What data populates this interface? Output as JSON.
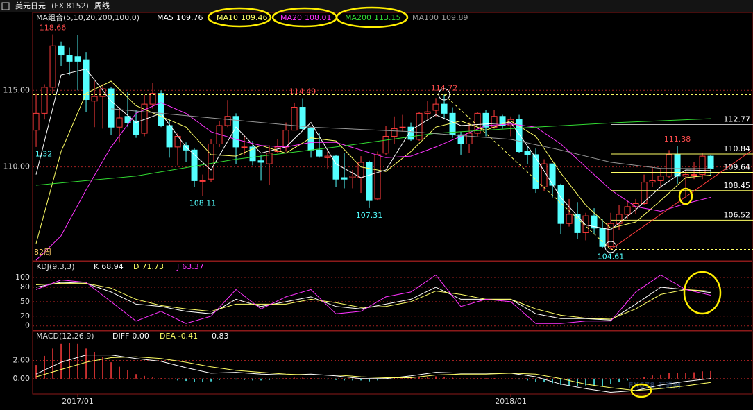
{
  "header": {
    "symbol": "美元日元",
    "code": "(FX 8152)",
    "period": "周线"
  },
  "watermark": "FX678 汇通网",
  "chart_data": [
    {
      "type": "candlestick",
      "indicator": "MA组合(5,10,20,200,100,0)",
      "period_label": "82周",
      "xlim": [
        -0.42,
        86.08
      ],
      "ylim": [
        103.86,
        120.09
      ],
      "grid": true,
      "yticks": [
        {
          "value": 115,
          "label": "115.00"
        },
        {
          "value": 110,
          "label": "110.00"
        }
      ],
      "up_color": "#ff3c3c",
      "down_color": "#54ffff",
      "open": [
        112.4,
        113.5,
        115.2,
        117.9,
        117.3,
        117.2,
        117.0,
        114.3,
        114.6,
        115.1,
        112.6,
        113.3,
        113.0,
        112.2,
        114.1,
        114.8,
        112.7,
        111.3,
        111.4,
        111.1,
        109.1,
        109.2,
        111.5,
        112.7,
        113.3,
        111.3,
        111.3,
        110.4,
        110.2,
        111.0,
        111.3,
        112.4,
        113.9,
        112.5,
        111.1,
        110.6,
        110.7,
        109.3,
        109.3,
        109.3,
        110.3,
        107.9,
        110.9,
        112.0,
        112.6,
        112.6,
        111.8,
        113.5,
        113.7,
        114.1,
        113.5,
        112.1,
        111.5,
        112.2,
        113.5,
        112.6,
        113.3,
        112.7,
        113.1,
        111.0,
        110.8,
        108.7,
        110.2,
        108.8,
        106.3,
        106.9,
        105.7,
        106.8,
        106.0,
        104.8,
        106.3,
        106.9,
        107.4,
        107.6,
        109.0,
        109.1,
        109.4,
        110.8,
        109.4,
        109.5,
        109.5,
        110.7
      ],
      "high": [
        114.8,
        115.4,
        118.66,
        118.2,
        117.8,
        118.6,
        117.5,
        115.6,
        115.4,
        115.2,
        113.9,
        114.9,
        113.7,
        114.7,
        115.5,
        115.0,
        113.1,
        112.2,
        111.6,
        111.2,
        109.5,
        111.8,
        113.0,
        114.37,
        113.5,
        112.1,
        111.7,
        110.8,
        111.4,
        111.8,
        112.9,
        114.2,
        114.49,
        112.6,
        112.2,
        111.0,
        110.8,
        110.9,
        109.8,
        110.7,
        110.4,
        111.0,
        112.7,
        113.3,
        113.4,
        112.9,
        113.6,
        114.3,
        114.5,
        114.72,
        113.9,
        112.3,
        112.9,
        113.6,
        113.7,
        113.7,
        113.4,
        113.3,
        113.4,
        111.3,
        111.2,
        110.5,
        110.2,
        108.9,
        107.9,
        107.7,
        107.0,
        107.3,
        106.6,
        107.0,
        107.5,
        107.8,
        107.9,
        109.5,
        110.0,
        109.9,
        111.1,
        111.38,
        109.7,
        110.3,
        110.9,
        110.8
      ],
      "low": [
        111.3,
        113.1,
        114.8,
        116.6,
        116.0,
        115.0,
        113.6,
        112.6,
        112.5,
        112.1,
        111.6,
        112.6,
        111.9,
        112.0,
        113.8,
        112.6,
        110.6,
        110.1,
        110.3,
        108.7,
        108.11,
        109.0,
        111.3,
        112.6,
        110.2,
        110.8,
        110.1,
        109.1,
        108.8,
        110.9,
        111.0,
        112.4,
        112.4,
        110.6,
        110.6,
        109.9,
        108.7,
        108.6,
        108.6,
        108.3,
        107.31,
        107.8,
        110.8,
        111.5,
        112.3,
        111.7,
        111.7,
        113.1,
        113.3,
        113.1,
        111.9,
        110.8,
        110.9,
        112.0,
        112.0,
        112.5,
        112.5,
        112.0,
        110.9,
        110.2,
        108.3,
        108.4,
        108.0,
        105.6,
        106.1,
        105.3,
        105.2,
        105.6,
        104.7,
        104.61,
        105.9,
        106.6,
        106.9,
        107.5,
        108.7,
        108.7,
        109.3,
        108.9,
        108.1,
        109.2,
        109.2,
        109.4
      ],
      "close": [
        113.5,
        115.2,
        117.9,
        117.3,
        116.9,
        116.9,
        114.4,
        114.6,
        115.1,
        112.6,
        113.2,
        112.9,
        112.1,
        114.1,
        114.8,
        112.7,
        111.3,
        112.0,
        111.1,
        109.1,
        109.1,
        111.5,
        112.7,
        113.3,
        111.3,
        111.3,
        110.4,
        110.3,
        110.9,
        111.3,
        112.4,
        113.9,
        112.5,
        111.1,
        110.7,
        110.7,
        109.2,
        109.2,
        109.4,
        110.3,
        107.8,
        110.8,
        112.0,
        112.5,
        112.6,
        111.8,
        113.5,
        113.6,
        114.1,
        113.5,
        112.1,
        111.5,
        112.2,
        113.5,
        112.6,
        113.3,
        112.7,
        113.1,
        111.0,
        110.8,
        108.6,
        110.2,
        108.8,
        106.3,
        106.9,
        105.7,
        106.8,
        106.0,
        104.8,
        106.3,
        106.9,
        107.4,
        107.6,
        109.0,
        109.1,
        109.4,
        110.8,
        109.4,
        109.5,
        109.5,
        110.7,
        109.9
      ],
      "series": [
        {
          "name": "MA5",
          "color": "#ffffff",
          "value": 109.76,
          "x": [
            0,
            3,
            6,
            9,
            12,
            15,
            18,
            21,
            24,
            27,
            30,
            33,
            36,
            39,
            42,
            45,
            48,
            51,
            54,
            57,
            60,
            63,
            66,
            69,
            72,
            75,
            78,
            81
          ],
          "values": [
            109.5,
            116.0,
            116.4,
            114.3,
            112.9,
            113.5,
            111.3,
            109.8,
            112.6,
            110.9,
            111.3,
            112.9,
            110.2,
            109.3,
            109.8,
            112.4,
            113.4,
            112.7,
            112.8,
            112.9,
            110.6,
            108.0,
            106.2,
            105.9,
            107.2,
            108.7,
            109.8,
            109.76
          ]
        },
        {
          "name": "MA10",
          "color": "#ffff66",
          "value": 109.46,
          "x": [
            0,
            3,
            6,
            9,
            12,
            15,
            18,
            21,
            24,
            27,
            30,
            33,
            36,
            39,
            42,
            45,
            48,
            51,
            54,
            57,
            60,
            63,
            66,
            69,
            72,
            75,
            78,
            81
          ],
          "values": [
            105.0,
            111.0,
            114.8,
            115.6,
            114.0,
            113.3,
            112.6,
            110.8,
            110.7,
            111.4,
            110.9,
            111.9,
            111.7,
            110.0,
            109.7,
            111.0,
            112.6,
            113.0,
            112.4,
            113.0,
            112.0,
            109.6,
            107.5,
            106.0,
            106.4,
            107.8,
            109.3,
            109.46
          ]
        },
        {
          "name": "MA20",
          "color": "#ff33ff",
          "value": 108.01,
          "x": [
            0,
            3,
            6,
            9,
            12,
            15,
            18,
            21,
            24,
            27,
            30,
            33,
            36,
            39,
            42,
            45,
            48,
            51,
            54,
            57,
            60,
            63,
            66,
            69,
            72,
            75,
            78,
            81
          ],
          "values": [
            103.9,
            105.5,
            108.5,
            111.3,
            113.5,
            114.2,
            113.5,
            112.3,
            111.8,
            111.4,
            111.3,
            111.6,
            111.6,
            111.1,
            110.6,
            110.7,
            111.3,
            112.0,
            112.7,
            112.8,
            112.6,
            111.5,
            110.0,
            108.5,
            107.4,
            107.1,
            107.6,
            108.01
          ]
        },
        {
          "name": "MA200",
          "color": "#33dd33",
          "value": 113.15,
          "x": [
            0,
            12,
            24,
            36,
            48,
            60,
            70,
            81
          ],
          "values": [
            108.8,
            109.4,
            110.5,
            111.3,
            112.2,
            112.6,
            112.9,
            113.15
          ]
        },
        {
          "name": "MA100",
          "color": "#999999",
          "value": 109.89,
          "x": [
            9,
            21,
            33,
            45,
            57,
            63,
            69,
            75,
            81
          ],
          "values": [
            113.8,
            113.2,
            112.6,
            112.3,
            111.8,
            111.1,
            110.3,
            109.9,
            109.89
          ]
        }
      ],
      "levels": [
        {
          "value": 112.77,
          "color": "#bbbbbb"
        },
        {
          "value": 110.84,
          "color": "#ffff66"
        },
        {
          "value": 109.64,
          "color": "#ffff66"
        },
        {
          "value": 108.45,
          "color": "#ffff66"
        },
        {
          "value": 106.52,
          "color": "#ffff66"
        }
      ],
      "dashed_levels": [
        114.72,
        104.61
      ],
      "trendlines": [
        {
          "x": [
            49,
            69
          ],
          "y": [
            114.72,
            104.61
          ],
          "color": "#ffff66",
          "dashed": true
        },
        {
          "x": [
            69,
            86
          ],
          "y": [
            104.61,
            111.1
          ],
          "color": "#ff3c3c",
          "dashed": false
        }
      ],
      "annotations": [
        {
          "x": 2,
          "y": 118.66,
          "text": "118.66",
          "color": "#ff4d4d",
          "pos": "above"
        },
        {
          "x": 32,
          "y": 114.49,
          "text": "114.49",
          "color": "#ff4d4d",
          "pos": "above"
        },
        {
          "x": 49,
          "y": 114.72,
          "text": "114.72",
          "color": "#ff4d4d",
          "pos": "above"
        },
        {
          "x": 77,
          "y": 111.38,
          "text": "111.38",
          "color": "#ff4d4d",
          "pos": "above"
        },
        {
          "x": 20,
          "y": 108.11,
          "text": "108.11",
          "color": "#54ffff",
          "pos": "below"
        },
        {
          "x": 40,
          "y": 107.31,
          "text": "107.31",
          "color": "#54ffff",
          "pos": "below"
        },
        {
          "x": 69,
          "y": 104.61,
          "text": "104.61",
          "color": "#54ffff",
          "pos": "below"
        },
        {
          "x": 0,
          "y": 111.32,
          "text": "1.32",
          "color": "#54ffff",
          "pos": "below"
        }
      ]
    },
    {
      "type": "line",
      "indicator": "KDJ(9,3,3)",
      "xlim": [
        -0.42,
        86.08
      ],
      "ylim": [
        -9,
        133
      ],
      "grid": true,
      "yticks": [
        100,
        80,
        50,
        20,
        0
      ],
      "x": [
        0,
        3,
        6,
        9,
        12,
        15,
        18,
        21,
        24,
        27,
        30,
        33,
        36,
        39,
        42,
        45,
        48,
        51,
        54,
        57,
        60,
        63,
        66,
        69,
        72,
        75,
        78,
        81
      ],
      "series": [
        {
          "name": "K",
          "color": "#ffffff",
          "value": 68.94,
          "values": [
            80,
            90,
            88,
            70,
            45,
            40,
            30,
            25,
            55,
            40,
            50,
            60,
            40,
            35,
            45,
            55,
            80,
            55,
            55,
            55,
            25,
            15,
            15,
            12,
            45,
            80,
            75,
            68.94
          ]
        },
        {
          "name": "D",
          "color": "#ffff66",
          "value": 71.73,
          "values": [
            85,
            88,
            88,
            78,
            55,
            42,
            35,
            30,
            45,
            45,
            45,
            55,
            48,
            38,
            40,
            50,
            72,
            65,
            55,
            55,
            35,
            22,
            16,
            14,
            35,
            65,
            75,
            71.73
          ]
        },
        {
          "name": "J",
          "color": "#ff33ff",
          "value": 63.37,
          "values": [
            75,
            95,
            90,
            50,
            10,
            30,
            5,
            20,
            75,
            35,
            60,
            75,
            25,
            30,
            60,
            70,
            105,
            40,
            55,
            50,
            5,
            5,
            10,
            10,
            70,
            105,
            75,
            63.37
          ]
        }
      ]
    },
    {
      "type": "macd",
      "indicator": "MACD(12,26,9)",
      "xlim": [
        -0.42,
        86.08
      ],
      "ylim": [
        -1.69,
        5.23
      ],
      "grid": true,
      "yticks": [
        {
          "value": 2,
          "label": "2.00"
        },
        {
          "value": 0,
          "label": "0.00"
        }
      ],
      "xticks": [
        {
          "value": 5,
          "label": "2017/01"
        },
        {
          "value": 57,
          "label": "2018/01"
        }
      ],
      "x": [
        0,
        3,
        6,
        9,
        12,
        15,
        18,
        21,
        24,
        27,
        30,
        33,
        36,
        39,
        42,
        45,
        48,
        51,
        54,
        57,
        60,
        63,
        66,
        69,
        72,
        75,
        78,
        81
      ],
      "series": [
        {
          "name": "DIFF",
          "color": "#ffffff",
          "value": {
            "value": 0,
            "label": "0.00"
          },
          "values": [
            0.5,
            1.8,
            2.6,
            2.6,
            2.2,
            1.9,
            1.2,
            0.6,
            0.7,
            0.5,
            0.4,
            0.5,
            0.3,
            0.0,
            0.0,
            0.3,
            0.7,
            0.6,
            0.6,
            0.6,
            0.2,
            -0.6,
            -1.1,
            -1.5,
            -1.3,
            -0.7,
            -0.3,
            0.0
          ]
        },
        {
          "name": "DEA",
          "color": "#ffff66",
          "value": -0.41,
          "values": [
            0.2,
            1.0,
            1.8,
            2.3,
            2.4,
            2.2,
            1.8,
            1.3,
            0.9,
            0.7,
            0.5,
            0.4,
            0.4,
            0.2,
            0.1,
            0.1,
            0.4,
            0.5,
            0.5,
            0.6,
            0.5,
            0.0,
            -0.6,
            -1.0,
            -1.3,
            -1.1,
            -0.8,
            -0.41
          ]
        }
      ],
      "histogram": {
        "value": 0.83,
        "up_color": "#ff3c3c",
        "down_color": "#54ffff",
        "values": [
          1.5,
          2.5,
          3.3,
          3.8,
          3.9,
          3.8,
          3.3,
          2.9,
          2.4,
          1.8,
          1.3,
          0.9,
          0.5,
          0.3,
          0.2,
          0.05,
          -0.1,
          -0.2,
          -0.25,
          -0.35,
          -0.4,
          -0.3,
          -0.15,
          -0.05,
          -0.1,
          -0.15,
          -0.2,
          -0.2,
          -0.15,
          -0.05,
          0.05,
          0.1,
          0.1,
          0.05,
          -0.05,
          -0.1,
          -0.15,
          -0.2,
          -0.2,
          -0.2,
          -0.3,
          -0.2,
          -0.05,
          0.1,
          0.15,
          0.1,
          0.15,
          0.2,
          0.25,
          0.2,
          0.1,
          0.0,
          0.0,
          0.05,
          0.05,
          0.05,
          0.0,
          0.0,
          -0.1,
          -0.2,
          -0.35,
          -0.4,
          -0.5,
          -0.7,
          -0.75,
          -0.8,
          -0.75,
          -0.7,
          -0.8,
          -0.6,
          -0.4,
          -0.2,
          0.0,
          0.2,
          0.35,
          0.45,
          0.6,
          0.65,
          0.65,
          0.7,
          0.8,
          0.83
        ]
      }
    }
  ]
}
